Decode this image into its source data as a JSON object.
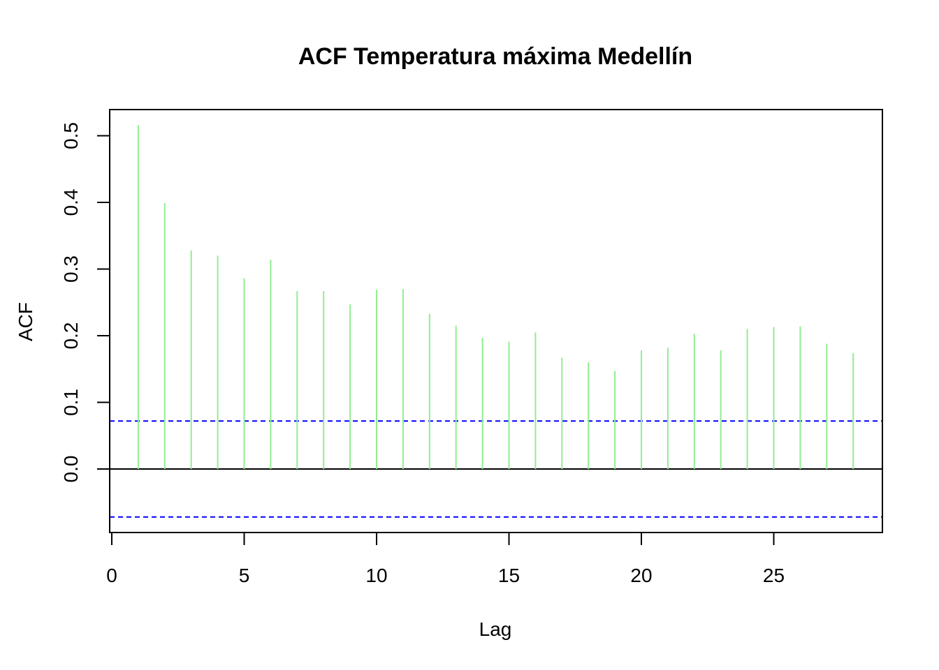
{
  "chart_data": {
    "type": "bar",
    "title": "ACF Temperatura máxima Medellín",
    "xlabel": "Lag",
    "ylabel": "ACF",
    "xlim": [
      0,
      29
    ],
    "ylim": [
      -0.095,
      0.5
    ],
    "x_ticks": [
      "0",
      "5",
      "10",
      "15",
      "20",
      "25"
    ],
    "y_ticks": [
      "0.0",
      "0.1",
      "0.2",
      "0.3",
      "0.4",
      "0.5"
    ],
    "x": [
      1,
      2,
      3,
      4,
      5,
      6,
      7,
      8,
      9,
      10,
      11,
      12,
      13,
      14,
      15,
      16,
      17,
      18,
      19,
      20,
      21,
      22,
      23,
      24,
      25,
      26,
      27,
      28
    ],
    "values": [
      0.516,
      0.399,
      0.328,
      0.32,
      0.286,
      0.314,
      0.267,
      0.267,
      0.247,
      0.269,
      0.27,
      0.233,
      0.215,
      0.197,
      0.191,
      0.205,
      0.167,
      0.16,
      0.147,
      0.178,
      0.182,
      0.203,
      0.178,
      0.21,
      0.213,
      0.214,
      0.188,
      0.174
    ],
    "confidence_bound": 0.072,
    "colors": {
      "bars": "#90ee90",
      "confidence": "#0000ff",
      "zero_line": "#000000",
      "frame": "#000000"
    },
    "grid": false,
    "legend": "none"
  }
}
